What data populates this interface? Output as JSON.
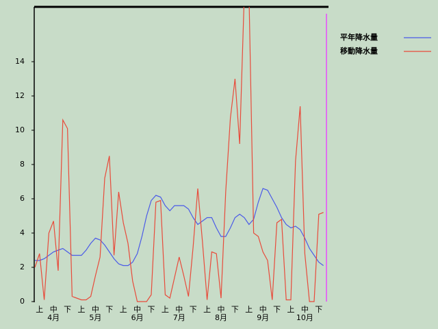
{
  "chart_data": {
    "type": "line",
    "categories": [
      null,
      "上",
      null,
      null,
      "中",
      null,
      null,
      "下",
      null,
      null,
      "上",
      null,
      null,
      "中",
      null,
      null,
      "下",
      null,
      null,
      "上",
      null,
      null,
      "中",
      null,
      null,
      "下",
      null,
      null,
      "上",
      null,
      null,
      "中",
      null,
      null,
      "下",
      null,
      null,
      "上",
      null,
      null,
      "中",
      null,
      null,
      "下",
      null,
      null,
      "上",
      null,
      null,
      "中",
      null,
      null,
      "下",
      null,
      null,
      "上",
      null,
      null,
      "中",
      null,
      null,
      "下",
      null
    ],
    "month_labels": [
      "4月",
      "5月",
      "6月",
      "7月",
      "8月",
      "9月",
      "10月"
    ],
    "series": [
      {
        "name": "平年降水量",
        "color": "#4a5ae8",
        "values": [
          2.4,
          2.4,
          2.5,
          2.7,
          2.9,
          3.0,
          3.1,
          2.9,
          2.7,
          2.7,
          2.7,
          3.0,
          3.4,
          3.7,
          3.6,
          3.3,
          2.9,
          2.5,
          2.2,
          2.1,
          2.1,
          2.3,
          2.8,
          3.8,
          5.0,
          5.9,
          6.2,
          6.1,
          5.6,
          5.3,
          5.6,
          5.6,
          5.6,
          5.4,
          4.9,
          4.5,
          4.7,
          4.9,
          4.9,
          4.3,
          3.8,
          3.8,
          4.3,
          4.9,
          5.1,
          4.9,
          4.5,
          4.8,
          5.8,
          6.6,
          6.5,
          6.0,
          5.5,
          4.9,
          4.5,
          4.3,
          4.4,
          4.2,
          3.7,
          3.1,
          2.7,
          2.3,
          2.1
        ]
      },
      {
        "name": "移動降水量",
        "color": "#e84a3a",
        "values": [
          2.0,
          2.8,
          0.1,
          4.0,
          4.7,
          1.8,
          10.6,
          10.1,
          0.3,
          0.2,
          0.1,
          0.1,
          0.3,
          1.5,
          2.6,
          7.2,
          8.5,
          2.7,
          6.4,
          4.6,
          3.4,
          1.2,
          0,
          0,
          0,
          0.4,
          5.8,
          5.9,
          0.4,
          0.2,
          1.4,
          2.6,
          1.5,
          0.3,
          3.2,
          6.6,
          3.5,
          0.1,
          2.9,
          2.8,
          0.2,
          6.4,
          10.7,
          13.0,
          9.2,
          18,
          18,
          4.0,
          3.8,
          2.9,
          2.4,
          0.1,
          4.6,
          4.8,
          0.1,
          0.1,
          8.2,
          11.4,
          2.8,
          0,
          0,
          5.1,
          5.2
        ]
      }
    ],
    "ylim": [
      0,
      17.2
    ],
    "yticks": [
      0,
      2,
      4,
      6,
      8,
      10,
      12,
      14
    ]
  }
}
